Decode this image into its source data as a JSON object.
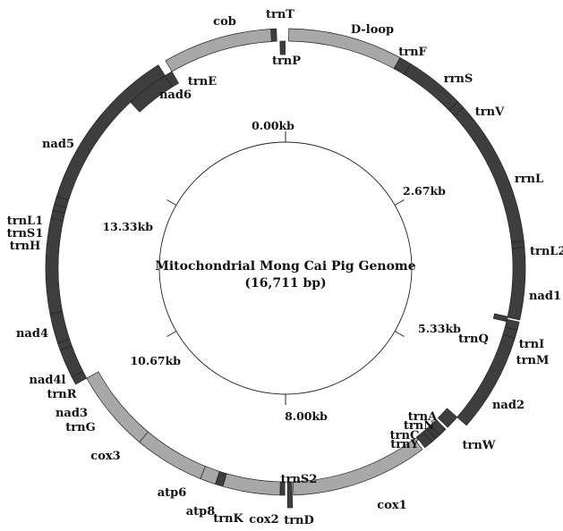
{
  "title": "Mitochondrial Mong Cai Pig Genome",
  "subtitle": "(16,711 bp)",
  "colors": {
    "dark_segment": "#3e3e3e",
    "light_segment": "#a8a8a8",
    "stroke": "#222222",
    "text": "#111111"
  },
  "ticks": [
    "0.00kb",
    "2.67kb",
    "5.33kb",
    "8.00kb",
    "10.67kb",
    "13.33kb"
  ],
  "segments": [
    {
      "label": "D-loop",
      "shade": "light"
    },
    {
      "label": "trnF",
      "shade": "dark"
    },
    {
      "label": "rrnS",
      "shade": "dark"
    },
    {
      "label": "trnV",
      "shade": "dark"
    },
    {
      "label": "rrnL",
      "shade": "dark"
    },
    {
      "label": "trnL2",
      "shade": "dark"
    },
    {
      "label": "nad1",
      "shade": "dark"
    },
    {
      "label": "trnI",
      "shade": "dark"
    },
    {
      "label": "trnQ",
      "shade": "dark"
    },
    {
      "label": "trnM",
      "shade": "dark"
    },
    {
      "label": "nad2",
      "shade": "dark"
    },
    {
      "label": "trnW",
      "shade": "dark"
    },
    {
      "label": "trnA",
      "shade": "dark"
    },
    {
      "label": "trnN",
      "shade": "dark"
    },
    {
      "label": "trnC",
      "shade": "dark"
    },
    {
      "label": "trnY",
      "shade": "dark"
    },
    {
      "label": "cox1",
      "shade": "light"
    },
    {
      "label": "trnS2",
      "shade": "dark"
    },
    {
      "label": "trnD",
      "shade": "dark"
    },
    {
      "label": "cox2",
      "shade": "light"
    },
    {
      "label": "trnK",
      "shade": "dark"
    },
    {
      "label": "atp8",
      "shade": "light"
    },
    {
      "label": "atp6",
      "shade": "light"
    },
    {
      "label": "cox3",
      "shade": "light"
    },
    {
      "label": "trnG",
      "shade": "dark"
    },
    {
      "label": "nad3",
      "shade": "dark"
    },
    {
      "label": "trnR",
      "shade": "dark"
    },
    {
      "label": "nad4l",
      "shade": "dark"
    },
    {
      "label": "nad4",
      "shade": "dark"
    },
    {
      "label": "trnH",
      "shade": "dark"
    },
    {
      "label": "trnS1",
      "shade": "dark"
    },
    {
      "label": "trnL1",
      "shade": "dark"
    },
    {
      "label": "nad5",
      "shade": "dark"
    },
    {
      "label": "nad6",
      "shade": "dark"
    },
    {
      "label": "trnE",
      "shade": "dark"
    },
    {
      "label": "cob",
      "shade": "light"
    },
    {
      "label": "trnT",
      "shade": "dark"
    },
    {
      "label": "trnP",
      "shade": "dark"
    }
  ]
}
